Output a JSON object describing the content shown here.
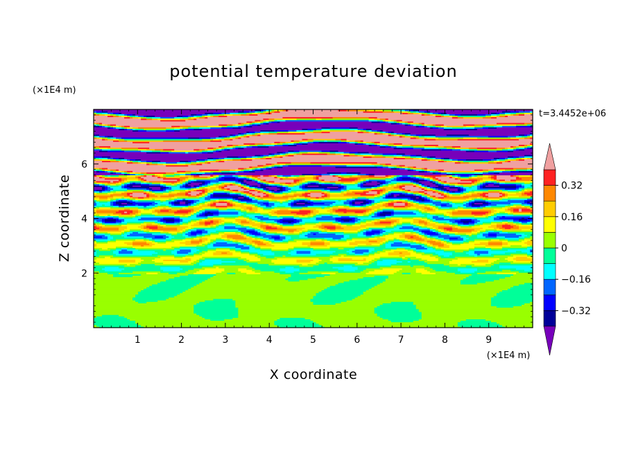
{
  "chart_data": {
    "type": "heatmap",
    "title": "potential temperature deviation",
    "xlabel": "X coordinate",
    "ylabel": "Z coordinate",
    "x_unit": "(×1E4 m)",
    "y_unit": "(×1E4 m)",
    "time_label": "t=3.4452e+06",
    "xlim": [
      0,
      10
    ],
    "ylim": [
      0,
      8
    ],
    "x_ticks": [
      "1",
      "2",
      "3",
      "4",
      "5",
      "6",
      "7",
      "8",
      "9"
    ],
    "y_ticks": [
      "2",
      "4",
      "6"
    ],
    "colorbar": {
      "levels": [
        -0.4,
        -0.32,
        -0.24,
        -0.16,
        -0.08,
        0,
        0.08,
        0.16,
        0.24,
        0.32,
        0.4
      ],
      "tick_labels": [
        "0.32",
        "0.16",
        "0",
        "−0.16",
        "−0.32"
      ],
      "tick_values": [
        0.32,
        0.16,
        0,
        -0.16,
        -0.32
      ],
      "colors": [
        "#000099",
        "#0000ff",
        "#0066ff",
        "#00ffff",
        "#00ff99",
        "#99ff00",
        "#ffff00",
        "#ffcc00",
        "#ff8800",
        "#ff2222"
      ],
      "under_color": "#7700bb",
      "over_color": "#f0a0a0"
    }
  }
}
